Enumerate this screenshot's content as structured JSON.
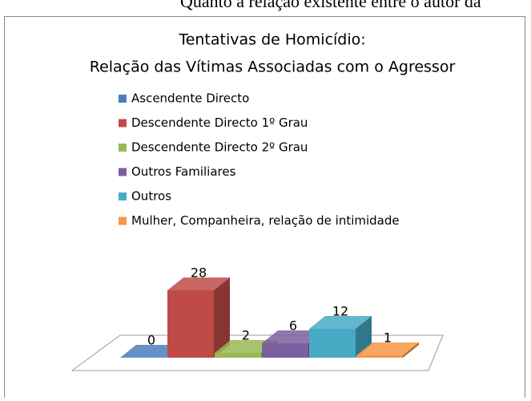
{
  "caption": "Quanto à relação existente entre o autor da",
  "chart_data": {
    "type": "bar3d",
    "title": [
      "Tentativas de Homicídio:",
      "Relação das Vítimas Associadas com o Agressor"
    ],
    "categories": [
      "Ascendente Directo",
      "Descendente Directo 1º Grau",
      "Descendente Directo 2º Grau",
      "Outros Familiares",
      "Outros",
      "Mulher, Companheira, relação de intimidade"
    ],
    "values": [
      0,
      28,
      2,
      6,
      12,
      1
    ],
    "colors": [
      "#4a7ebb",
      "#be4b48",
      "#98b954",
      "#7d5fa0",
      "#46aac5",
      "#f79646"
    ]
  }
}
